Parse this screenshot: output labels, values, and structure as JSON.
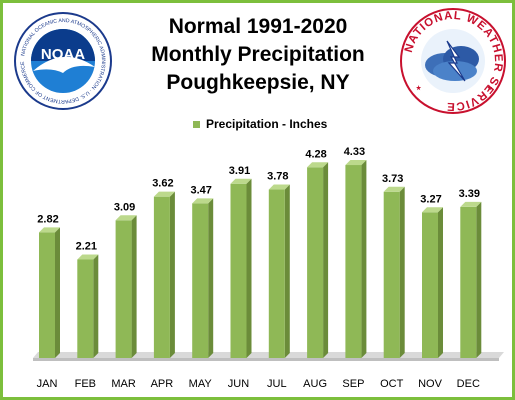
{
  "title": {
    "line1": "Normal 1991-2020",
    "line2": "Monthly Precipitation",
    "line3": "Poughkeepsie, NY"
  },
  "logos": {
    "noaa": {
      "text": "NOAA",
      "ring_text": "NATIONAL OCEANIC AND ATMOSPHERIC ADMINISTRATION · U.S. DEPARTMENT OF COMMERCE"
    },
    "nws": {
      "ring_text": "NATIONAL WEATHER SERVICE"
    }
  },
  "colors": {
    "frame": "#7cbf3c",
    "bar_front": "#8fb856",
    "bar_side": "#6b8c3a",
    "bar_top": "#bcd98c",
    "floor": "#d9d9d9"
  },
  "chart_data": {
    "type": "bar",
    "legend": "Precipitation - Inches",
    "legend_position": "top",
    "categories": [
      "JAN",
      "FEB",
      "MAR",
      "APR",
      "MAY",
      "JUN",
      "JUL",
      "AUG",
      "SEP",
      "OCT",
      "NOV",
      "DEC"
    ],
    "series": [
      {
        "name": "Precipitation - Inches",
        "values": [
          2.82,
          2.21,
          3.09,
          3.62,
          3.47,
          3.91,
          3.78,
          4.28,
          4.33,
          3.73,
          3.27,
          3.39
        ]
      }
    ],
    "ylim": [
      0,
      4.6
    ],
    "grid": false
  }
}
